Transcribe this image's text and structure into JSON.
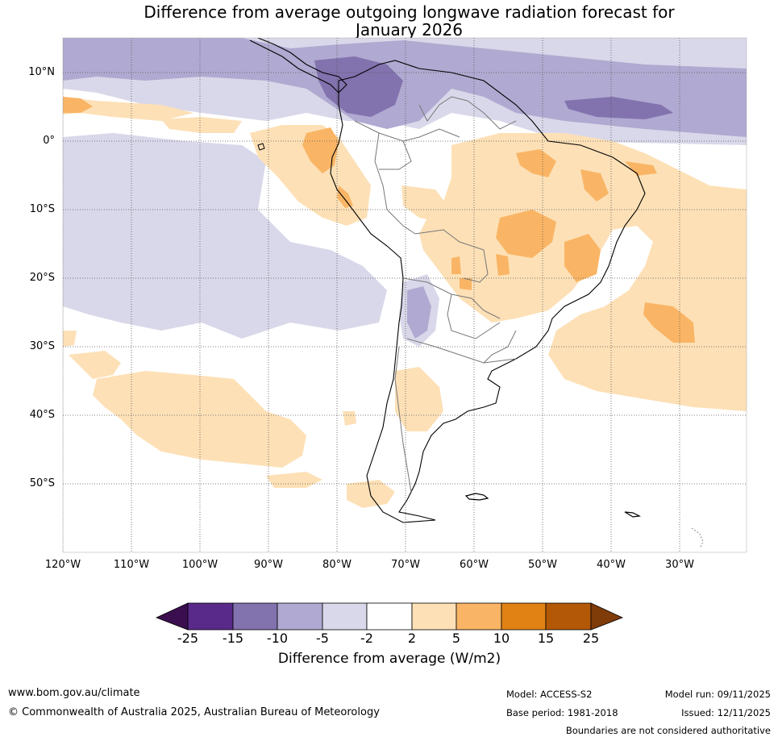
{
  "title": {
    "line1": "Difference from average outgoing longwave radiation forecast for",
    "line2": "January 2026"
  },
  "latitude_labels": [
    "10°N",
    "0°",
    "10°S",
    "20°S",
    "30°S",
    "40°S",
    "50°S"
  ],
  "longitude_labels": [
    "120°W",
    "110°W",
    "100°W",
    "90°W",
    "80°W",
    "70°W",
    "60°W",
    "50°W",
    "40°W",
    "30°W"
  ],
  "colorbar": {
    "ticks": [
      "-25",
      "-15",
      "-10",
      "-5",
      "-2",
      "2",
      "5",
      "10",
      "15",
      "25"
    ],
    "colors": [
      "#3b0f4f",
      "#5a2a8a",
      "#8272ae",
      "#b0a9d1",
      "#d9d8ea",
      "#ffffff",
      "#fde0b6",
      "#f9b565",
      "#e08214",
      "#b35806",
      "#7f3b08"
    ],
    "label": "Difference from average (W/m2)"
  },
  "footer": {
    "website": "www.bom.gov.au/climate",
    "copyright": "© Commonwealth of Australia 2025, Australian Bureau of Meteorology",
    "model": "Model: ACCESS-S2",
    "base_period": "Base period: 1981-2018",
    "model_run": "Model run: 09/11/2025",
    "issued": "Issued: 12/11/2025",
    "disclaimer": "Boundaries are not considered authoritative"
  }
}
